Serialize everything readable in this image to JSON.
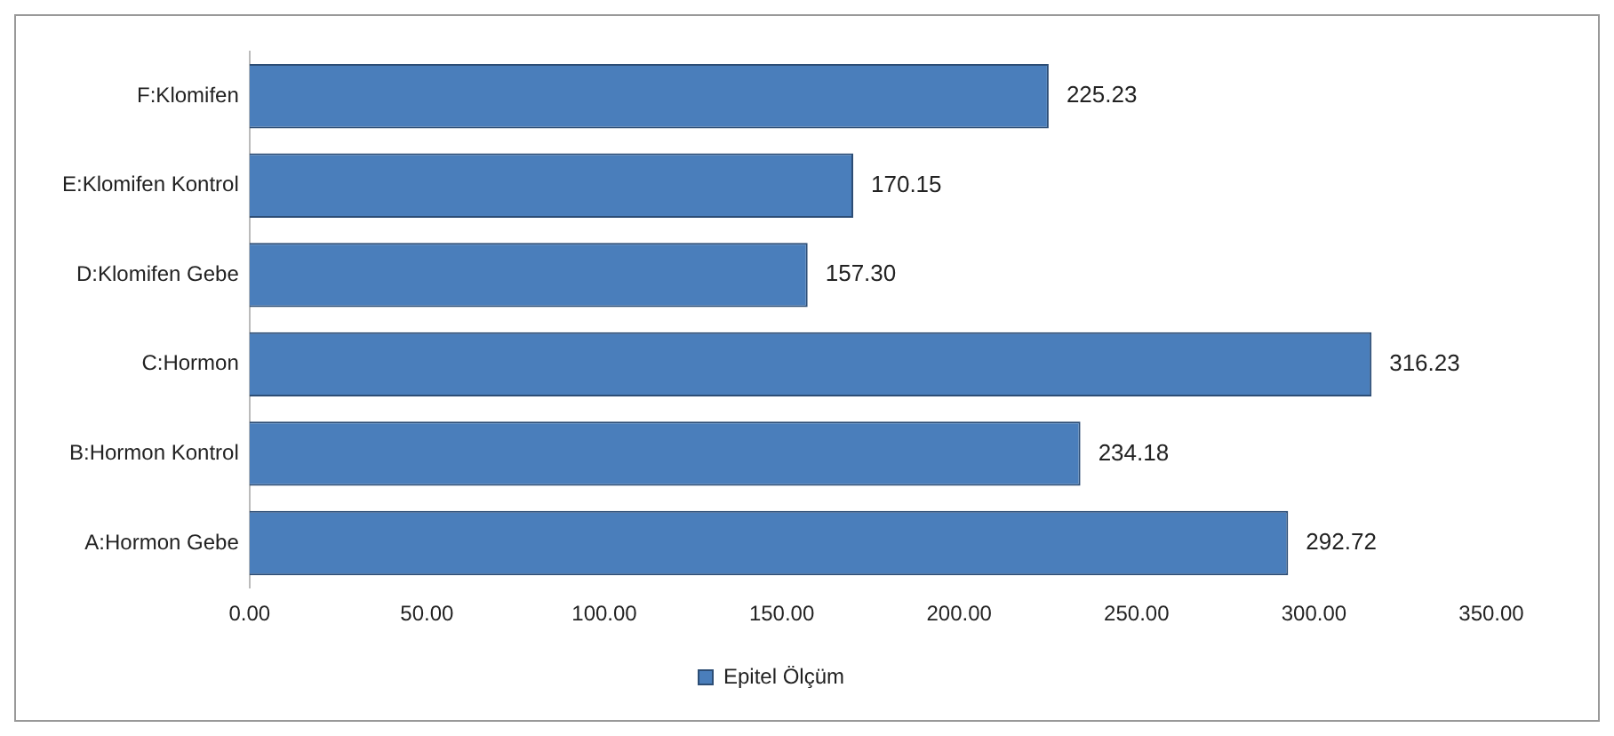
{
  "chart_data": {
    "type": "bar",
    "orientation": "horizontal",
    "categories": [
      "F:Klomifen",
      "E:Klomifen Kontrol",
      "D:Klomifen Gebe",
      "C:Hormon",
      "B:Hormon Kontrol",
      "A:Hormon Gebe"
    ],
    "series": [
      {
        "name": "Epitel Ölçüm",
        "color": "#4a7ebb",
        "values": [
          225.23,
          170.15,
          157.3,
          316.23,
          234.18,
          292.72
        ],
        "value_labels": [
          "225.23",
          "170.15",
          "157.30",
          "316.23",
          "234.18",
          "292.72"
        ]
      }
    ],
    "xlim": [
      0,
      350
    ],
    "xticks": [
      {
        "value": 0,
        "label": "0.00"
      },
      {
        "value": 50,
        "label": "50.00"
      },
      {
        "value": 100,
        "label": "100.00"
      },
      {
        "value": 150,
        "label": "150.00"
      },
      {
        "value": 200,
        "label": "200.00"
      },
      {
        "value": 250,
        "label": "250.00"
      },
      {
        "value": 300,
        "label": "300.00"
      },
      {
        "value": 350,
        "label": "350.00"
      }
    ],
    "grid": false,
    "legend": "bottom"
  }
}
